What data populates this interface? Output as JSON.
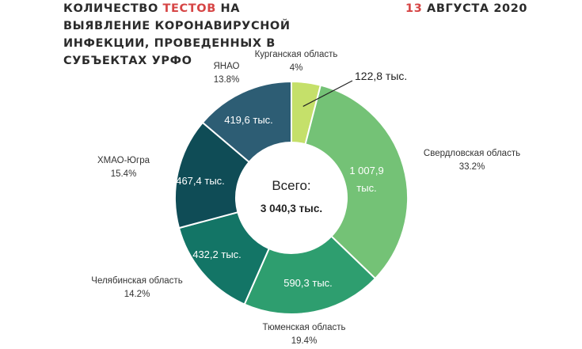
{
  "header": {
    "title_part1": "КОЛИЧЕСТВО ",
    "title_highlight": "ТЕСТОВ",
    "title_part2": " НА ВЫЯВЛЕНИЕ КОРОНАВИРУСНОЙ ИНФЕКЦИИ, ПРОВЕДЕННЫХ В СУБЪЕКТАХ УРФО",
    "date_day": "13",
    "date_rest": " АВГУСТА 2020"
  },
  "colors": {
    "highlight": "#d64545",
    "kurgan": "#c5e06a",
    "sverdlovsk": "#74c276",
    "tyumen": "#2e9e6f",
    "chelyabinsk": "#137566",
    "hmao": "#0f4c56",
    "yanao": "#2d5d74"
  },
  "chart_data": {
    "type": "pie",
    "donut": true,
    "center_label_1": "Всего:",
    "center_label_2": "3 040,3 тыс.",
    "slices": [
      {
        "name": "Курганская область",
        "percent_label": "4%",
        "value": 122.8,
        "value_label": "122,8 тыс.",
        "color_key": "kurgan"
      },
      {
        "name": "Свердловская область",
        "percent_label": "33.2%",
        "value": 1007.9,
        "value_label": "1 007,9 тыс.",
        "color_key": "sverdlovsk"
      },
      {
        "name": "Тюменская область",
        "percent_label": "19.4%",
        "value": 590.3,
        "value_label": "590,3 тыс.",
        "color_key": "tyumen"
      },
      {
        "name": "Челябинская область",
        "percent_label": "14.2%",
        "value": 432.2,
        "value_label": "432,2 тыс.",
        "color_key": "chelyabinsk"
      },
      {
        "name": "ХМАО-Югра",
        "percent_label": "15.4%",
        "value": 467.4,
        "value_label": "467,4 тыс.",
        "color_key": "hmao"
      },
      {
        "name": "ЯНАО",
        "percent_label": "13.8%",
        "value": 419.6,
        "value_label": "419,6 тыс.",
        "color_key": "yanao"
      }
    ]
  }
}
